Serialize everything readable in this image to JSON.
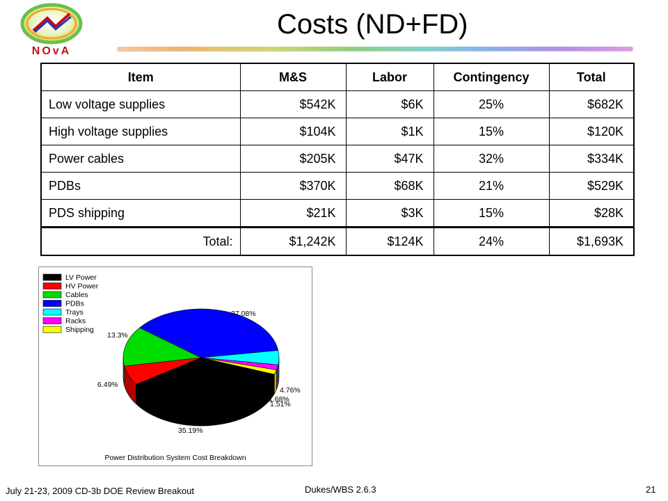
{
  "header": {
    "title": "Costs (ND+FD)",
    "logo_text": "NOvA"
  },
  "table": {
    "columns": [
      "Item",
      "M&S",
      "Labor",
      "Contingency",
      "Total"
    ],
    "rows": [
      [
        "Low voltage supplies",
        "$542K",
        "$6K",
        "25%",
        "$682K"
      ],
      [
        "High voltage supplies",
        "$104K",
        "$1K",
        "15%",
        "$120K"
      ],
      [
        "Power cables",
        "$205K",
        "$47K",
        "32%",
        "$334K"
      ],
      [
        "PDBs",
        "$370K",
        "$68K",
        "21%",
        "$529K"
      ],
      [
        "PDS shipping",
        "$21K",
        "$3K",
        "15%",
        "$28K"
      ]
    ],
    "total_row": [
      "Total:",
      "$1,242K",
      "$124K",
      "24%",
      "$1,693K"
    ]
  },
  "chart_data": {
    "type": "pie",
    "title": "Power Distribution System Cost Breakdown",
    "legend_position": "top-left",
    "categories": [
      "LV Power",
      "HV Power",
      "Cables",
      "PDBs",
      "Trays",
      "Racks",
      "Shipping"
    ],
    "values": [
      35.19,
      6.49,
      13.3,
      37.08,
      4.76,
      1.68,
      1.51
    ],
    "value_labels": [
      "35.19%",
      "6.49%",
      "13.3%",
      "37.08%",
      "4.76%",
      "1.68%",
      "1.51%"
    ],
    "colors": [
      "#000000",
      "#ff0000",
      "#00dd00",
      "#0000ff",
      "#00ffff",
      "#ff00ff",
      "#ffff00"
    ]
  },
  "footer": {
    "left": "July 21-23, 2009 CD-3b DOE Review Breakout",
    "center": "Dukes/WBS 2.6.3",
    "page": "21"
  }
}
